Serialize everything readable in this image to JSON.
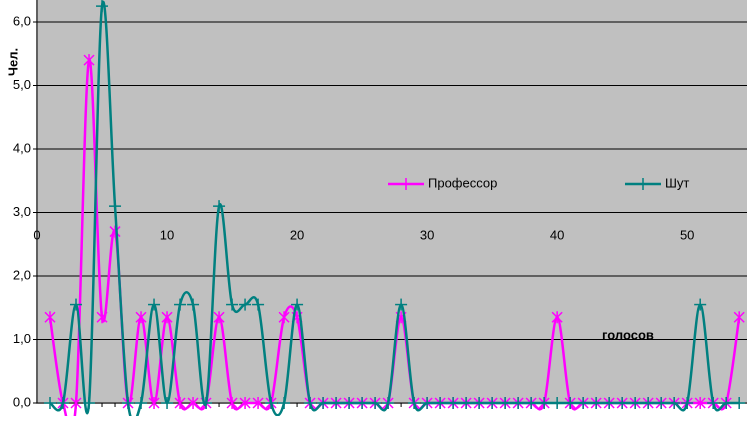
{
  "chart_data": {
    "type": "line",
    "y_label": "Чел.",
    "annotation": "голосов",
    "x": [
      1,
      2,
      3,
      4,
      5,
      6,
      7,
      8,
      9,
      10,
      11,
      12,
      13,
      14,
      15,
      16,
      17,
      18,
      19,
      20,
      21,
      22,
      23,
      24,
      25,
      26,
      27,
      28,
      29,
      30,
      31,
      32,
      33,
      34,
      35,
      36,
      37,
      38,
      39,
      40,
      41,
      42,
      43,
      44,
      45,
      46,
      47,
      48,
      49,
      50,
      51,
      52,
      53,
      54
    ],
    "series": [
      {
        "name": "Профессор",
        "color": "#ff00ff",
        "marker": "x",
        "values": [
          1.35,
          0,
          0,
          5.4,
          1.35,
          2.7,
          0,
          1.35,
          0,
          1.35,
          0,
          0,
          0,
          1.35,
          0,
          0,
          0,
          0,
          1.35,
          1.35,
          0,
          0,
          0,
          0,
          0,
          0,
          0,
          1.35,
          0,
          0,
          0,
          0,
          0,
          0,
          0,
          0,
          0,
          0,
          0,
          1.35,
          0,
          0,
          0,
          0,
          0,
          0,
          0,
          0,
          0,
          0,
          0,
          0,
          0,
          1.35
        ]
      },
      {
        "name": "Шут",
        "color": "#008080",
        "marker": "+",
        "values": [
          0,
          0,
          1.55,
          0,
          6.25,
          3.1,
          0,
          0,
          1.55,
          0,
          1.55,
          1.55,
          0,
          3.1,
          1.55,
          1.55,
          1.55,
          0,
          0,
          1.55,
          0,
          0,
          0,
          0,
          0,
          0,
          0,
          1.55,
          0,
          0,
          0,
          0,
          0,
          0,
          0,
          0,
          0,
          0,
          0,
          0,
          0,
          0,
          0,
          0,
          0,
          0,
          0,
          0,
          0,
          0,
          1.55,
          0,
          0,
          0
        ]
      }
    ],
    "xlim": [
      0,
      54.6
    ],
    "xticks": [
      0,
      10,
      20,
      30,
      40,
      50
    ],
    "ylim": [
      0,
      6
    ],
    "yticks": [
      {
        "value": 0,
        "label": "0,0"
      },
      {
        "value": 1,
        "label": "1,0"
      },
      {
        "value": 2,
        "label": "2,0"
      },
      {
        "value": 3,
        "label": "3,0"
      },
      {
        "value": 4,
        "label": "4,0"
      },
      {
        "value": 5,
        "label": "5,0"
      },
      {
        "value": 6,
        "label": "6,0"
      }
    ],
    "grid": true,
    "smooth": true
  }
}
